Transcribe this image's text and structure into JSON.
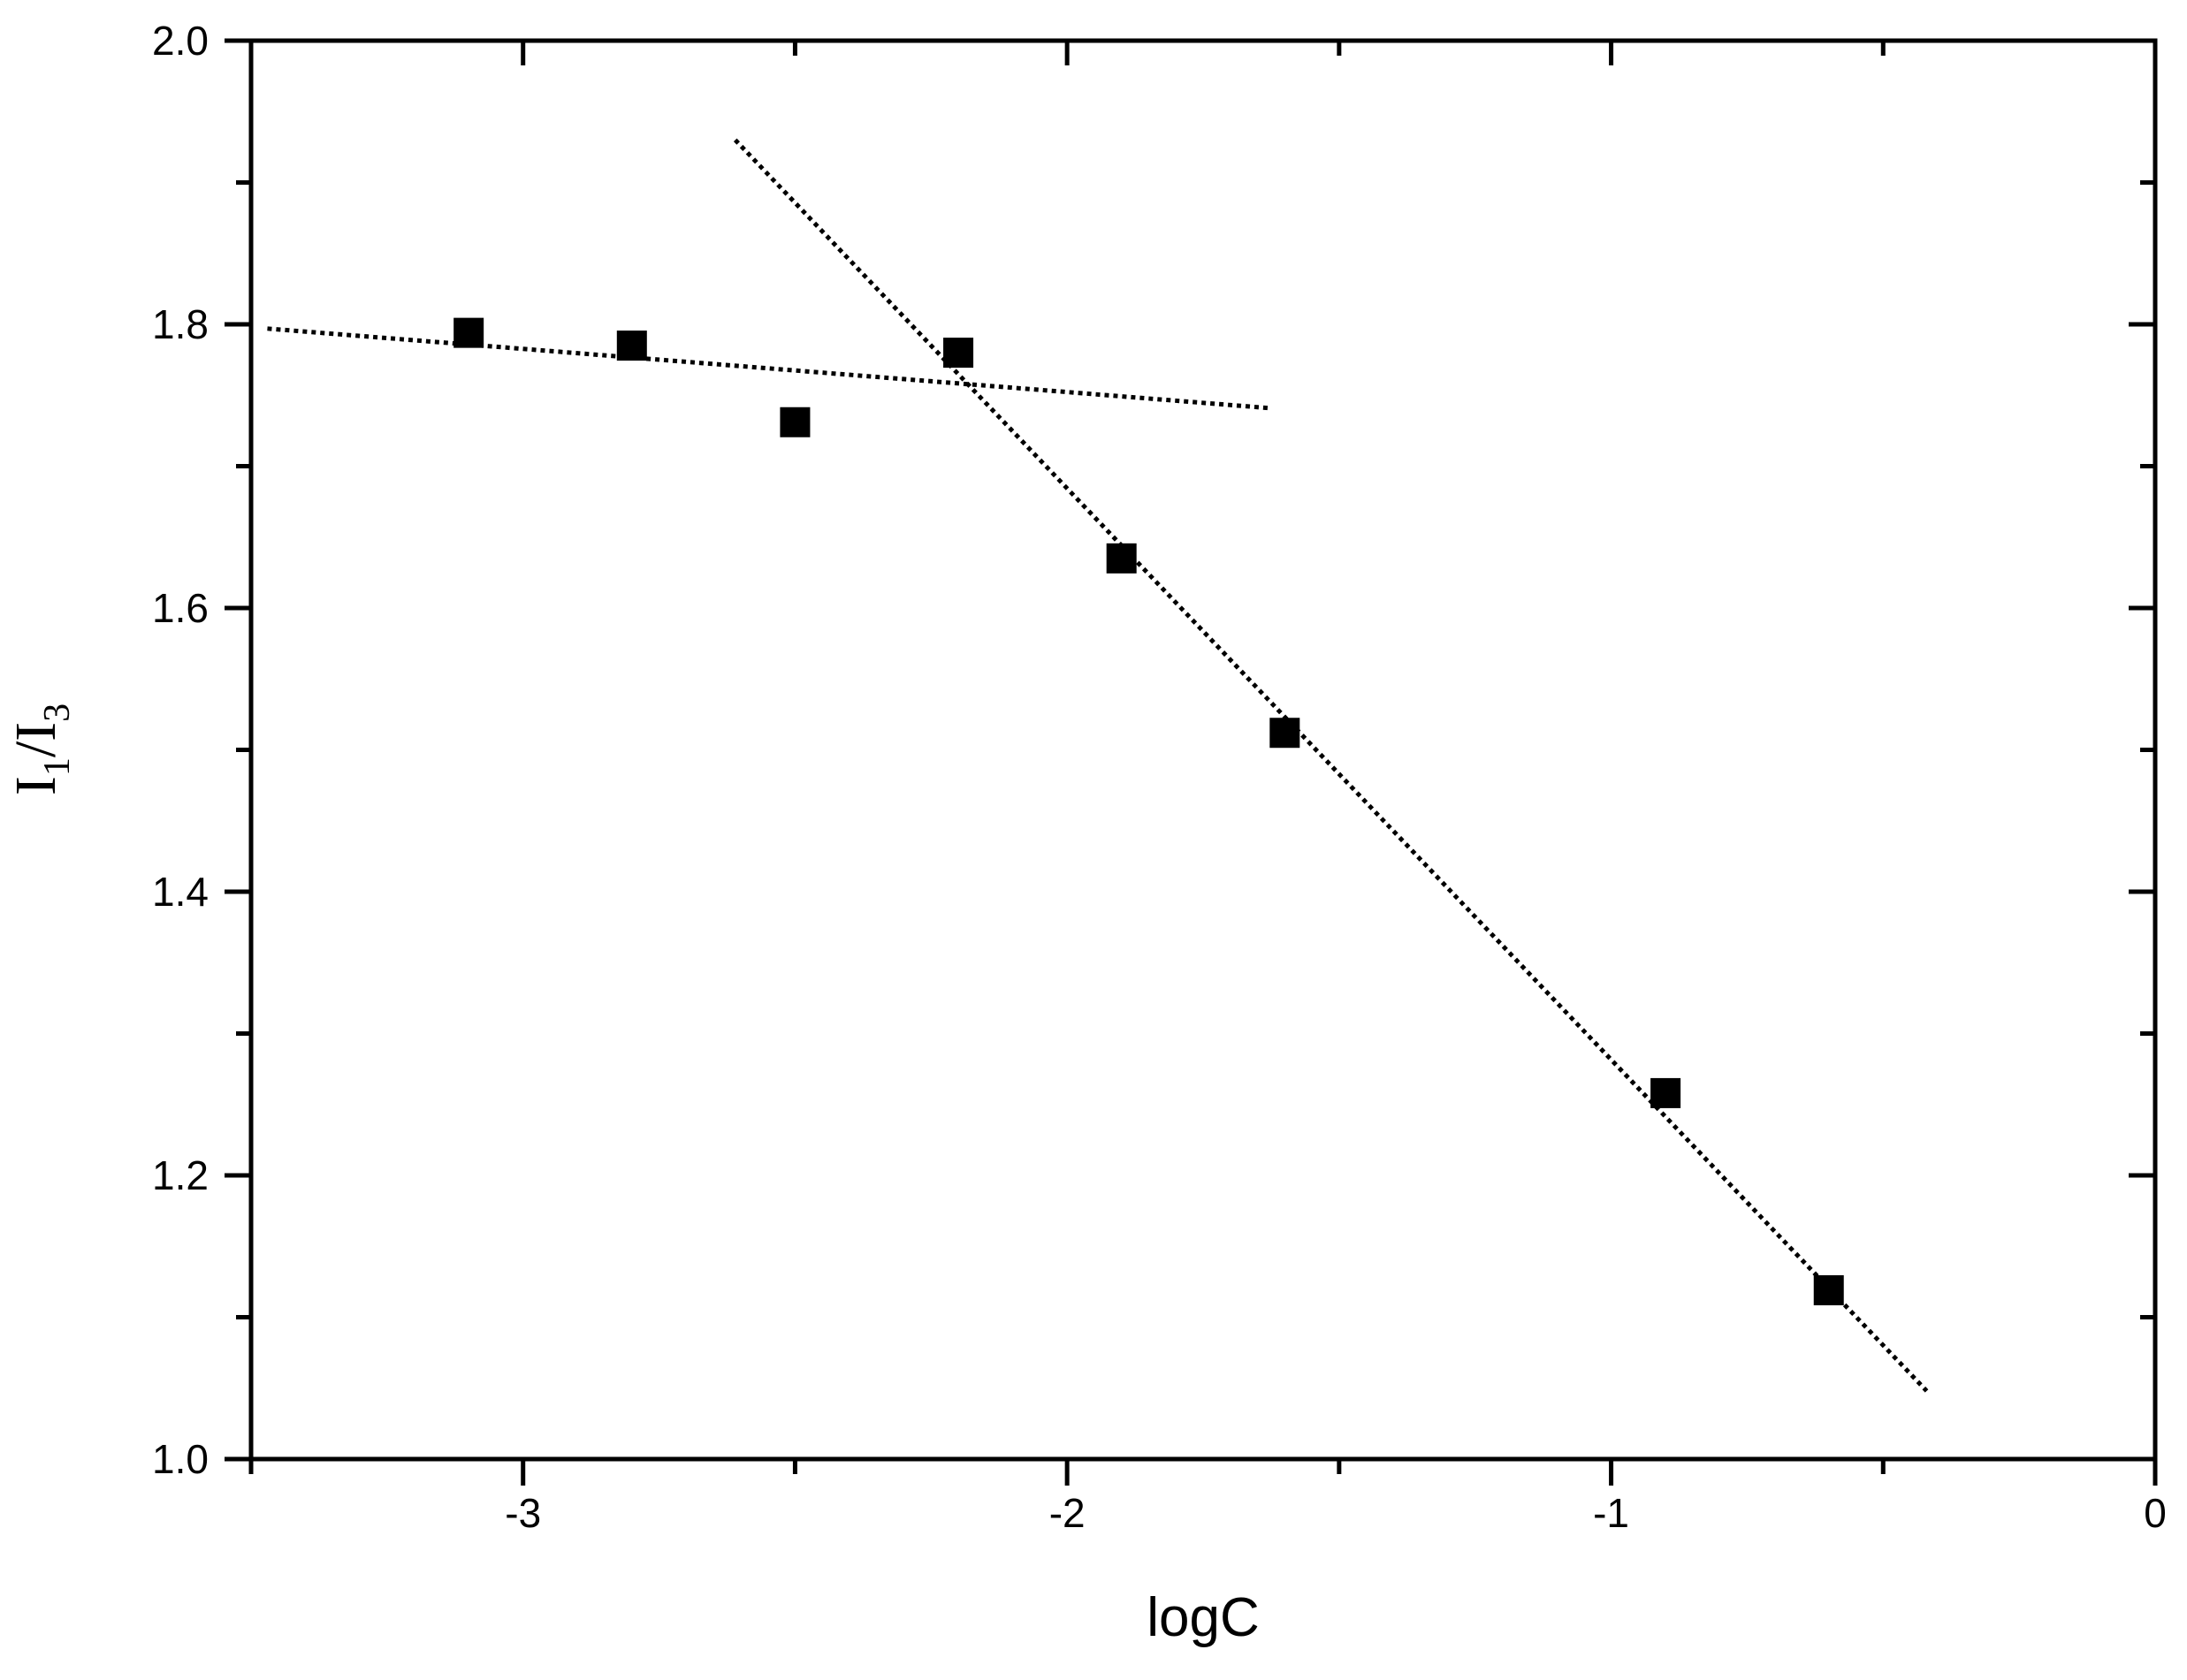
{
  "chart_data": {
    "type": "scatter",
    "xlabel": "logC",
    "ylabel": {
      "main1": "I",
      "sub1": "1",
      "slash": "/",
      "main2": "I",
      "sub2": "3"
    },
    "xlim": [
      -3.5,
      0
    ],
    "ylim": [
      1.0,
      2.0
    ],
    "x_major_ticks": [
      -3,
      -2,
      -1,
      0
    ],
    "x_tick_labels": [
      "-3",
      "-2",
      "-1",
      "0"
    ],
    "x_minor_ticks": [
      -3.5,
      -2.5,
      -1.5,
      -0.5
    ],
    "y_major_ticks": [
      1.0,
      1.2,
      1.4,
      1.6,
      1.8,
      2.0
    ],
    "y_tick_labels": [
      "1.0",
      "1.2",
      "1.4",
      "1.6",
      "1.8",
      "2.0"
    ],
    "y_minor_ticks": [
      1.1,
      1.3,
      1.5,
      1.7,
      1.9
    ],
    "grid": false,
    "series": [
      {
        "marker": "square",
        "color": "#000000",
        "points": [
          {
            "x": -3.1,
            "y": 1.794
          },
          {
            "x": -2.8,
            "y": 1.785
          },
          {
            "x": -2.5,
            "y": 1.731
          },
          {
            "x": -2.2,
            "y": 1.78
          },
          {
            "x": -1.9,
            "y": 1.635
          },
          {
            "x": -1.6,
            "y": 1.512
          },
          {
            "x": -0.9,
            "y": 1.258
          },
          {
            "x": -0.6,
            "y": 1.119
          }
        ]
      }
    ],
    "fit_lines": [
      {
        "style": "dotted",
        "color": "#000000",
        "x": [
          -3.47,
          -1.63
        ],
        "y": [
          1.797,
          1.741
        ]
      },
      {
        "style": "dotted",
        "color": "#000000",
        "x": [
          -2.61,
          -0.42
        ],
        "y": [
          1.93,
          1.048
        ]
      }
    ]
  }
}
